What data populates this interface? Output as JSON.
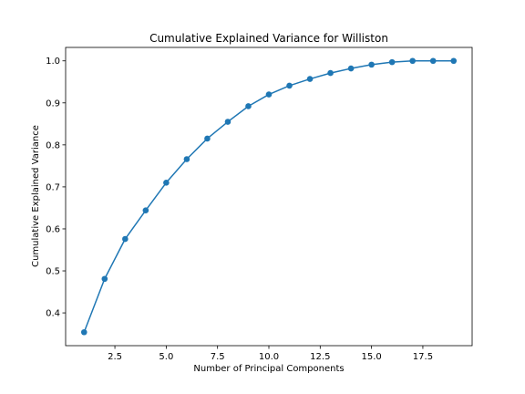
{
  "chart_data": {
    "type": "line",
    "title": "Cumulative Explained Variance for Williston",
    "xlabel": "Number of Principal Components",
    "ylabel": "Cumulative Explained Variance",
    "series": [
      {
        "x": [
          1,
          2,
          3,
          4,
          5,
          6,
          7,
          8,
          9,
          10,
          11,
          12,
          13,
          14,
          15,
          16,
          17,
          18,
          19
        ],
        "values": [
          0.354,
          0.481,
          0.576,
          0.644,
          0.71,
          0.766,
          0.815,
          0.855,
          0.892,
          0.92,
          0.941,
          0.957,
          0.971,
          0.982,
          0.991,
          0.997,
          1.0,
          1.0,
          1.0
        ]
      }
    ],
    "xlim": [
      0.1,
      19.9
    ],
    "ylim": [
      0.322,
      1.032
    ],
    "xticks": [
      2.5,
      5.0,
      7.5,
      10.0,
      12.5,
      15.0,
      17.5
    ],
    "xtick_labels": [
      "2.5",
      "5.0",
      "7.5",
      "10.0",
      "12.5",
      "15.0",
      "17.5"
    ],
    "yticks": [
      0.4,
      0.5,
      0.6,
      0.7,
      0.8,
      0.9,
      1.0
    ],
    "ytick_labels": [
      "0.4",
      "0.5",
      "0.6",
      "0.7",
      "0.8",
      "0.9",
      "1.0"
    ],
    "grid": false,
    "line_color": "#1f77b4",
    "marker": "circle"
  }
}
